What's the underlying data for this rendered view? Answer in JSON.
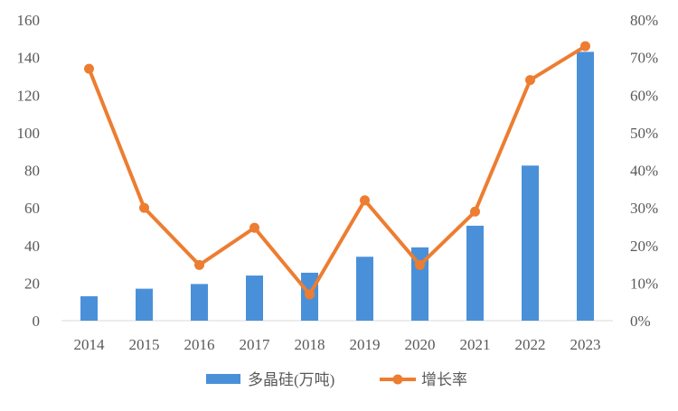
{
  "chart_data": {
    "type": "bar",
    "categories": [
      "2014",
      "2015",
      "2016",
      "2017",
      "2018",
      "2019",
      "2020",
      "2021",
      "2022",
      "2023"
    ],
    "series": [
      {
        "name": "多晶硅(万吨)",
        "type": "bar",
        "axis": "left",
        "color": "#4A90D9",
        "values": [
          13,
          17,
          19.5,
          24,
          25.5,
          34,
          39,
          50.5,
          82.5,
          143
        ]
      },
      {
        "name": "增长率",
        "type": "line",
        "axis": "right",
        "color": "#ED7D31",
        "values": [
          0.67,
          0.3,
          0.148,
          0.247,
          0.07,
          0.32,
          0.148,
          0.29,
          0.64,
          0.73
        ]
      }
    ],
    "y_left": {
      "ylim": [
        0,
        160
      ],
      "ticks": [
        "0",
        "20",
        "40",
        "60",
        "80",
        "100",
        "120",
        "140",
        "160"
      ]
    },
    "y_right": {
      "ylim": [
        0,
        0.8
      ],
      "ticks": [
        "0%",
        "10%",
        "20%",
        "30%",
        "40%",
        "50%",
        "60%",
        "70%",
        "80%"
      ]
    },
    "grid": false,
    "legend_position": "bottom"
  }
}
